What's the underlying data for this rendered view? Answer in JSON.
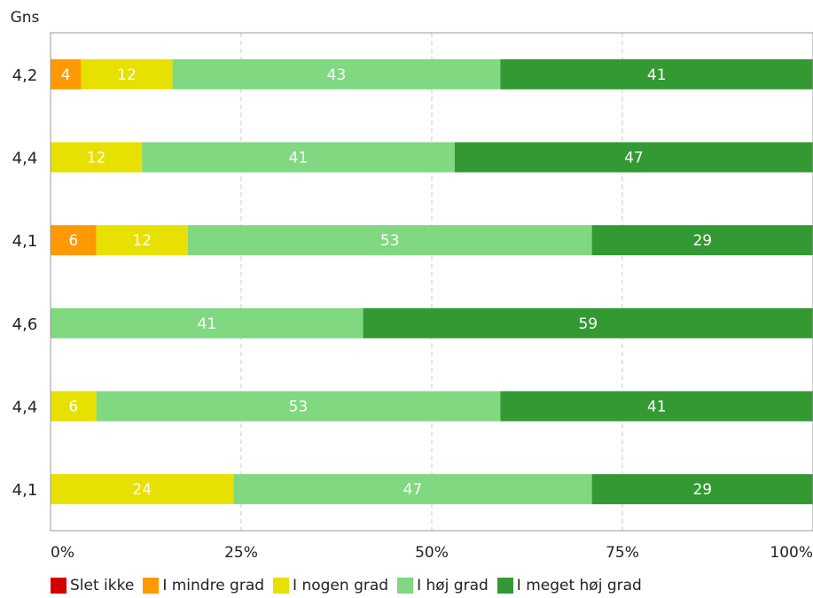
{
  "chart_data": {
    "type": "bar",
    "orientation": "horizontal",
    "stacked": true,
    "avg_header": "Gns",
    "row_averages": [
      "4,2",
      "4,4",
      "4,1",
      "4,6",
      "4,4",
      "4,1"
    ],
    "series": [
      {
        "name": "Slet ikke",
        "color": "#d40000",
        "values": [
          0,
          0,
          0,
          0,
          0,
          0
        ]
      },
      {
        "name": "I mindre grad",
        "color": "#ff9900",
        "values": [
          4,
          0,
          6,
          0,
          0,
          0
        ]
      },
      {
        "name": "I nogen grad",
        "color": "#e8e000",
        "values": [
          12,
          12,
          12,
          0,
          6,
          24
        ]
      },
      {
        "name": "I høj grad",
        "color": "#80d880",
        "values": [
          43,
          41,
          53,
          41,
          53,
          47
        ]
      },
      {
        "name": "I meget høj grad",
        "color": "#339933",
        "values": [
          41,
          47,
          29,
          59,
          41,
          29
        ]
      }
    ],
    "xlim": [
      0,
      100
    ],
    "x_ticks": [
      "0%",
      "25%",
      "50%",
      "75%",
      "100%"
    ],
    "grid": true,
    "legend_position": "bottom"
  }
}
